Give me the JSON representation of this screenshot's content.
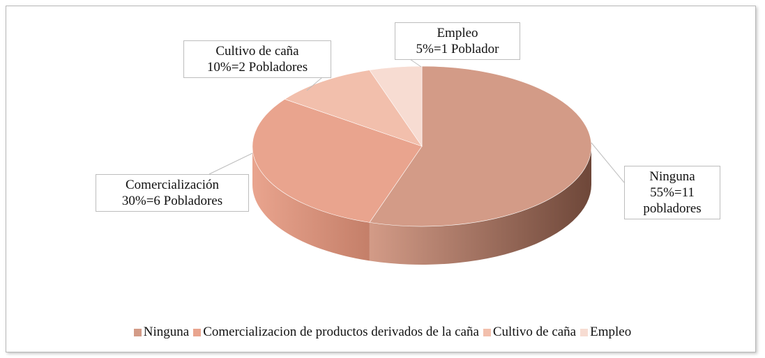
{
  "chart_data": {
    "type": "pie",
    "categories": [
      "Ninguna",
      "Comercializacion de productos derivados de la caña",
      "Cultivo de caña",
      "Empleo"
    ],
    "label_names": [
      "Ninguna",
      "Comercialización",
      "Cultivo de caña",
      "Empleo"
    ],
    "values": [
      55,
      30,
      10,
      5
    ],
    "value_labels": [
      "55%=11 pobladores",
      "30%=6 Pobladores",
      "10%=2 Pobladores",
      "5%=1 Poblador"
    ],
    "colors": [
      "#d39b87",
      "#e9a48e",
      "#f2bfac",
      "#f7dcd2"
    ],
    "side_colors": [
      "#6e4739",
      "#c47f69",
      "#d9a08c",
      "#e8c3b6"
    ],
    "legend": "bottom"
  }
}
